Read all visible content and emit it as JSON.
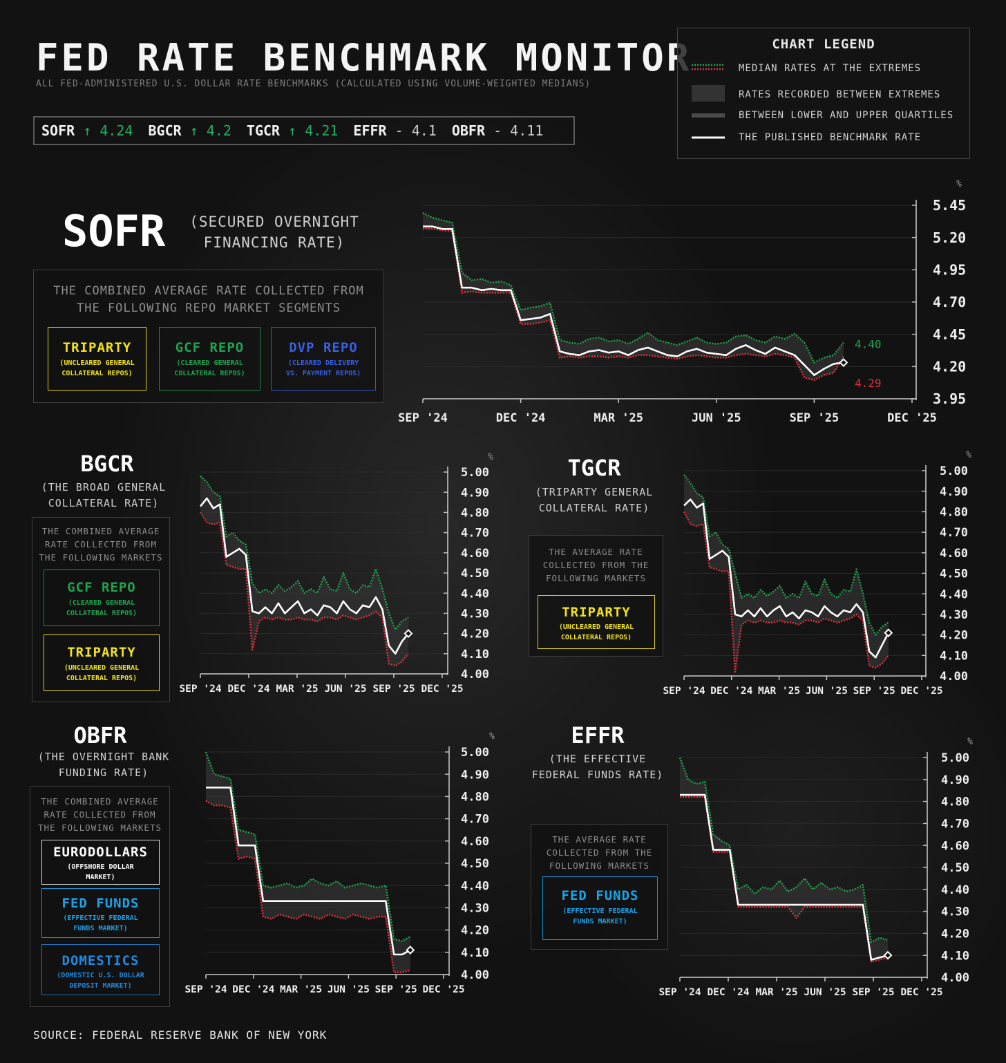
{
  "header": {
    "title": "FED RATE BENCHMARK MONITOR",
    "subtitle": "ALL FED-ADMINISTERED U.S. DOLLAR RATE BENCHMARKS (CALCULATED USING VOLUME-WEIGHTED MEDIANS)"
  },
  "ticker": [
    {
      "name": "SOFR",
      "arrow": "↑",
      "value": "4.24",
      "dir": "up"
    },
    {
      "name": "BGCR",
      "arrow": "↑",
      "value": "4.2",
      "dir": "up"
    },
    {
      "name": "TGCR",
      "arrow": "↑",
      "value": "4.21",
      "dir": "up"
    },
    {
      "name": "EFFR",
      "arrow": "-",
      "value": "4.1",
      "dir": "flat"
    },
    {
      "name": "OBFR",
      "arrow": "-",
      "value": "4.11",
      "dir": "flat"
    }
  ],
  "legend": {
    "title": "CHART LEGEND",
    "items": [
      "MEDIAN RATES AT THE EXTREMES",
      "RATES RECORDED BETWEEN EXTREMES",
      "BETWEEN LOWER AND UPPER QUARTILES",
      "THE PUBLISHED BENCHMARK RATE"
    ]
  },
  "sofr": {
    "title": "SOFR",
    "subtitle_line1": "(SECURED OVERNIGHT",
    "subtitle_line2": "FINANCING RATE)",
    "desc_line1": "THE COMBINED AVERAGE RATE COLLECTED FROM",
    "desc_line2": "THE FOLLOWING REPO MARKET SEGMENTS",
    "segments": [
      {
        "title": "TRIPARTY",
        "sub1": "(UNCLEARED GENERAL",
        "sub2": "COLLATERAL REPOS)"
      },
      {
        "title": "GCF REPO",
        "sub1": "(CLEARED GENERAL",
        "sub2": "COLLATERAL REPOS)"
      },
      {
        "title": "DVP REPO",
        "sub1": "(CLEARED DELIVERY",
        "sub2": "VS. PAYMENT REPOS)"
      }
    ]
  },
  "bgcr": {
    "title": "BGCR",
    "subtitle_line1": "(THE BROAD GENERAL",
    "subtitle_line2": "COLLATERAL RATE)",
    "desc_line1": "THE COMBINED AVERAGE",
    "desc_line2": "RATE COLLECTED FROM",
    "desc_line3": "THE FOLLOWING MARKETS",
    "segments": [
      {
        "title": "GCF REPO",
        "sub1": "(CLEARED GENERAL",
        "sub2": "COLLATERAL REPOS)"
      },
      {
        "title": "TRIPARTY",
        "sub1": "(UNCLEARED GENERAL",
        "sub2": "COLLATERAL REPOS)"
      }
    ]
  },
  "tgcr": {
    "title": "TGCR",
    "subtitle_line1": "(TRIPARTY GENERAL",
    "subtitle_line2": "COLLATERAL RATE)",
    "desc_line1": "THE AVERAGE RATE",
    "desc_line2": "COLLECTED FROM THE",
    "desc_line3": "FOLLOWING MARKETS",
    "segments": [
      {
        "title": "TRIPARTY",
        "sub1": "(UNCLEARED GENERAL",
        "sub2": "COLLATERAL REPOS)"
      }
    ]
  },
  "obfr": {
    "title": "OBFR",
    "subtitle_line1": "(THE OVERNIGHT BANK",
    "subtitle_line2": "FUNDING RATE)",
    "desc_line1": "THE COMBINED AVERAGE",
    "desc_line2": "RATE COLLECTED FROM",
    "desc_line3": "THE FOLLOWING MARKETS",
    "segments": [
      {
        "title": "EURODOLLARS",
        "sub1": "(OFFSHORE DOLLAR",
        "sub2": "MARKET)"
      },
      {
        "title": "FED FUNDS",
        "sub1": "(EFFECTIVE FEDERAL",
        "sub2": "FUNDS MARKET)"
      },
      {
        "title": "DOMESTICS",
        "sub1": "(DOMESTIC U.S. DOLLAR",
        "sub2": "DEPOSIT MARKET)"
      }
    ]
  },
  "effr": {
    "title": "EFFR",
    "subtitle_line1": "(THE EFFECTIVE",
    "subtitle_line2": "FEDERAL FUNDS RATE)",
    "desc_line1": "THE AVERAGE RATE",
    "desc_line2": "COLLECTED FROM THE",
    "desc_line3": "FOLLOWING MARKETS",
    "segments": [
      {
        "title": "FED FUNDS",
        "sub1": "(EFFECTIVE FEDERAL",
        "sub2": "FUNDS MARKET)"
      }
    ]
  },
  "source": "SOURCE: FEDERAL RESERVE BANK OF NEW YORK",
  "colors": {
    "upper": "#1fa64e",
    "lower": "#e0323c",
    "rate": "#ffffff",
    "band": "#4a4a4a"
  },
  "chart_data": [
    {
      "id": "sofr",
      "type": "line",
      "title": "SOFR",
      "ylabel": "%",
      "x_tick_labels": [
        "SEP '24",
        "DEC '24",
        "MAR '25",
        "JUN '25",
        "SEP '25",
        "DEC '25"
      ],
      "y_tick_labels": [
        "3.95",
        "4.20",
        "4.45",
        "4.70",
        "4.95",
        "5.20",
        "5.45"
      ],
      "ylim": [
        3.95,
        5.5
      ],
      "annotations": [
        {
          "text": "4.40",
          "color": "#1fa64e",
          "x": 0.91,
          "y": 4.4
        },
        {
          "text": "4.29",
          "color": "#e0323c",
          "x": 0.91,
          "y": 4.29
        }
      ],
      "series": [
        {
          "name": "Published rate",
          "values": [
            5.33,
            5.33,
            5.31,
            5.31,
            4.84,
            4.84,
            4.82,
            4.83,
            4.82,
            4.82,
            4.58,
            4.59,
            4.6,
            4.63,
            4.33,
            4.31,
            4.3,
            4.33,
            4.34,
            4.32,
            4.33,
            4.3,
            4.34,
            4.36,
            4.33,
            4.3,
            4.29,
            4.33,
            4.35,
            4.32,
            4.31,
            4.3,
            4.35,
            4.38,
            4.34,
            4.31,
            4.36,
            4.33,
            4.3,
            4.22,
            4.14,
            4.19,
            4.23,
            4.24
          ]
        },
        {
          "name": "Upper extreme",
          "values": [
            5.44,
            5.4,
            5.38,
            5.36,
            4.96,
            4.9,
            4.91,
            4.88,
            4.89,
            4.86,
            4.66,
            4.68,
            4.69,
            4.72,
            4.42,
            4.4,
            4.39,
            4.43,
            4.44,
            4.41,
            4.42,
            4.39,
            4.43,
            4.48,
            4.42,
            4.4,
            4.38,
            4.41,
            4.44,
            4.4,
            4.39,
            4.4,
            4.45,
            4.46,
            4.42,
            4.4,
            4.45,
            4.43,
            4.47,
            4.4,
            4.24,
            4.28,
            4.3,
            4.4
          ]
        },
        {
          "name": "Lower extreme",
          "values": [
            5.31,
            5.31,
            5.3,
            5.29,
            4.8,
            4.81,
            4.8,
            4.8,
            4.8,
            4.8,
            4.55,
            4.55,
            4.56,
            4.58,
            4.28,
            4.29,
            4.28,
            4.29,
            4.29,
            4.28,
            4.29,
            4.28,
            4.3,
            4.3,
            4.29,
            4.28,
            4.27,
            4.29,
            4.3,
            4.29,
            4.28,
            4.28,
            4.3,
            4.31,
            4.3,
            4.29,
            4.31,
            4.3,
            4.28,
            4.12,
            4.1,
            4.14,
            4.16,
            4.29
          ]
        }
      ]
    },
    {
      "id": "bgcr",
      "type": "line",
      "title": "BGCR",
      "ylabel": "%",
      "x_tick_labels": [
        "SEP '24",
        "DEC '24",
        "MAR '25",
        "JUN '25",
        "SEP '25",
        "DEC '25"
      ],
      "y_tick_labels": [
        "4.00",
        "4.10",
        "4.20",
        "4.30",
        "4.40",
        "4.50",
        "4.60",
        "4.70",
        "4.80",
        "4.90",
        "5.00"
      ],
      "ylim": [
        4.0,
        5.0
      ],
      "series": [
        {
          "name": "Published rate",
          "values": [
            4.83,
            4.87,
            4.82,
            4.84,
            4.58,
            4.6,
            4.62,
            4.59,
            4.31,
            4.3,
            4.33,
            4.3,
            4.35,
            4.3,
            4.33,
            4.36,
            4.3,
            4.32,
            4.29,
            4.34,
            4.33,
            4.3,
            4.36,
            4.32,
            4.3,
            4.34,
            4.33,
            4.38,
            4.32,
            4.14,
            4.1,
            4.16,
            4.2
          ]
        },
        {
          "name": "Upper extreme",
          "values": [
            4.98,
            4.95,
            4.9,
            4.88,
            4.68,
            4.7,
            4.66,
            4.64,
            4.45,
            4.4,
            4.42,
            4.4,
            4.44,
            4.41,
            4.43,
            4.46,
            4.4,
            4.42,
            4.4,
            4.48,
            4.42,
            4.41,
            4.5,
            4.42,
            4.4,
            4.44,
            4.43,
            4.52,
            4.42,
            4.3,
            4.22,
            4.26,
            4.28
          ]
        },
        {
          "name": "Lower extreme",
          "values": [
            4.8,
            4.75,
            4.74,
            4.75,
            4.54,
            4.53,
            4.52,
            4.52,
            4.12,
            4.26,
            4.28,
            4.27,
            4.28,
            4.27,
            4.27,
            4.28,
            4.27,
            4.27,
            4.26,
            4.28,
            4.28,
            4.27,
            4.29,
            4.28,
            4.27,
            4.28,
            4.29,
            4.31,
            4.28,
            4.05,
            4.04,
            4.06,
            4.1
          ]
        }
      ]
    },
    {
      "id": "tgcr",
      "type": "line",
      "title": "TGCR",
      "ylabel": "%",
      "x_tick_labels": [
        "SEP '24",
        "DEC '24",
        "MAR '25",
        "JUN '25",
        "SEP '25",
        "DEC '25"
      ],
      "y_tick_labels": [
        "4.00",
        "4.10",
        "4.20",
        "4.30",
        "4.40",
        "4.50",
        "4.60",
        "4.70",
        "4.80",
        "4.90",
        "5.00"
      ],
      "ylim": [
        4.0,
        5.0
      ],
      "series": [
        {
          "name": "Published rate",
          "values": [
            4.83,
            4.86,
            4.82,
            4.84,
            4.57,
            4.59,
            4.61,
            4.58,
            4.3,
            4.29,
            4.32,
            4.29,
            4.33,
            4.29,
            4.32,
            4.34,
            4.29,
            4.31,
            4.28,
            4.32,
            4.31,
            4.29,
            4.34,
            4.31,
            4.29,
            4.32,
            4.31,
            4.35,
            4.31,
            4.12,
            4.09,
            4.15,
            4.21
          ]
        },
        {
          "name": "Upper extreme",
          "values": [
            4.98,
            4.94,
            4.89,
            4.87,
            4.68,
            4.7,
            4.64,
            4.62,
            4.5,
            4.38,
            4.4,
            4.38,
            4.42,
            4.39,
            4.41,
            4.44,
            4.38,
            4.4,
            4.38,
            4.46,
            4.4,
            4.39,
            4.47,
            4.4,
            4.38,
            4.42,
            4.41,
            4.52,
            4.4,
            4.26,
            4.2,
            4.24,
            4.26
          ]
        },
        {
          "name": "Lower extreme",
          "values": [
            4.8,
            4.74,
            4.73,
            4.74,
            4.53,
            4.52,
            4.51,
            4.51,
            4.02,
            4.25,
            4.27,
            4.26,
            4.27,
            4.26,
            4.26,
            4.27,
            4.26,
            4.26,
            4.25,
            4.27,
            4.27,
            4.26,
            4.28,
            4.27,
            4.26,
            4.27,
            4.28,
            4.3,
            4.27,
            4.05,
            4.04,
            4.06,
            4.1
          ]
        }
      ]
    },
    {
      "id": "obfr",
      "type": "line",
      "title": "OBFR",
      "ylabel": "%",
      "x_tick_labels": [
        "SEP '24",
        "DEC '24",
        "MAR '25",
        "JUN '25",
        "SEP '25",
        "DEC '25"
      ],
      "y_tick_labels": [
        "4.00",
        "4.10",
        "4.20",
        "4.30",
        "4.40",
        "4.50",
        "4.60",
        "4.70",
        "4.80",
        "4.90",
        "5.00"
      ],
      "ylim": [
        4.0,
        5.0
      ],
      "series": [
        {
          "name": "Published rate",
          "values": [
            4.84,
            4.84,
            4.84,
            4.84,
            4.58,
            4.58,
            4.58,
            4.33,
            4.33,
            4.33,
            4.33,
            4.33,
            4.33,
            4.33,
            4.33,
            4.33,
            4.33,
            4.33,
            4.33,
            4.33,
            4.33,
            4.33,
            4.33,
            4.09,
            4.09,
            4.11
          ]
        },
        {
          "name": "Upper extreme",
          "values": [
            5.0,
            4.9,
            4.89,
            4.88,
            4.65,
            4.64,
            4.63,
            4.4,
            4.39,
            4.4,
            4.41,
            4.39,
            4.4,
            4.43,
            4.41,
            4.4,
            4.42,
            4.39,
            4.4,
            4.41,
            4.4,
            4.39,
            4.4,
            4.16,
            4.15,
            4.17
          ]
        },
        {
          "name": "Lower extreme",
          "values": [
            4.78,
            4.76,
            4.76,
            4.75,
            4.52,
            4.53,
            4.52,
            4.26,
            4.25,
            4.27,
            4.26,
            4.25,
            4.27,
            4.26,
            4.25,
            4.27,
            4.26,
            4.25,
            4.27,
            4.26,
            4.25,
            4.26,
            4.26,
            4.01,
            4.01,
            4.02
          ]
        }
      ]
    },
    {
      "id": "effr",
      "type": "line",
      "title": "EFFR",
      "ylabel": "%",
      "x_tick_labels": [
        "SEP '24",
        "DEC '24",
        "MAR '25",
        "JUN '25",
        "SEP '25",
        "DEC '25"
      ],
      "y_tick_labels": [
        "4.00",
        "4.10",
        "4.20",
        "4.30",
        "4.40",
        "4.50",
        "4.60",
        "4.70",
        "4.80",
        "4.90",
        "5.00"
      ],
      "ylim": [
        4.0,
        5.0
      ],
      "series": [
        {
          "name": "Published rate",
          "values": [
            4.83,
            4.83,
            4.83,
            4.83,
            4.58,
            4.58,
            4.58,
            4.33,
            4.33,
            4.33,
            4.33,
            4.33,
            4.33,
            4.33,
            4.33,
            4.33,
            4.33,
            4.33,
            4.33,
            4.33,
            4.33,
            4.33,
            4.33,
            4.08,
            4.09,
            4.1
          ]
        },
        {
          "name": "Upper extreme",
          "values": [
            5.0,
            4.9,
            4.88,
            4.89,
            4.65,
            4.62,
            4.6,
            4.4,
            4.42,
            4.38,
            4.41,
            4.4,
            4.44,
            4.39,
            4.41,
            4.45,
            4.4,
            4.43,
            4.4,
            4.41,
            4.39,
            4.4,
            4.42,
            4.16,
            4.18,
            4.17
          ]
        },
        {
          "name": "Lower extreme",
          "values": [
            4.82,
            4.82,
            4.82,
            4.82,
            4.57,
            4.57,
            4.57,
            4.32,
            4.32,
            4.32,
            4.32,
            4.32,
            4.32,
            4.32,
            4.27,
            4.32,
            4.32,
            4.32,
            4.32,
            4.32,
            4.32,
            4.32,
            4.32,
            4.07,
            4.08,
            4.09
          ]
        }
      ]
    }
  ]
}
